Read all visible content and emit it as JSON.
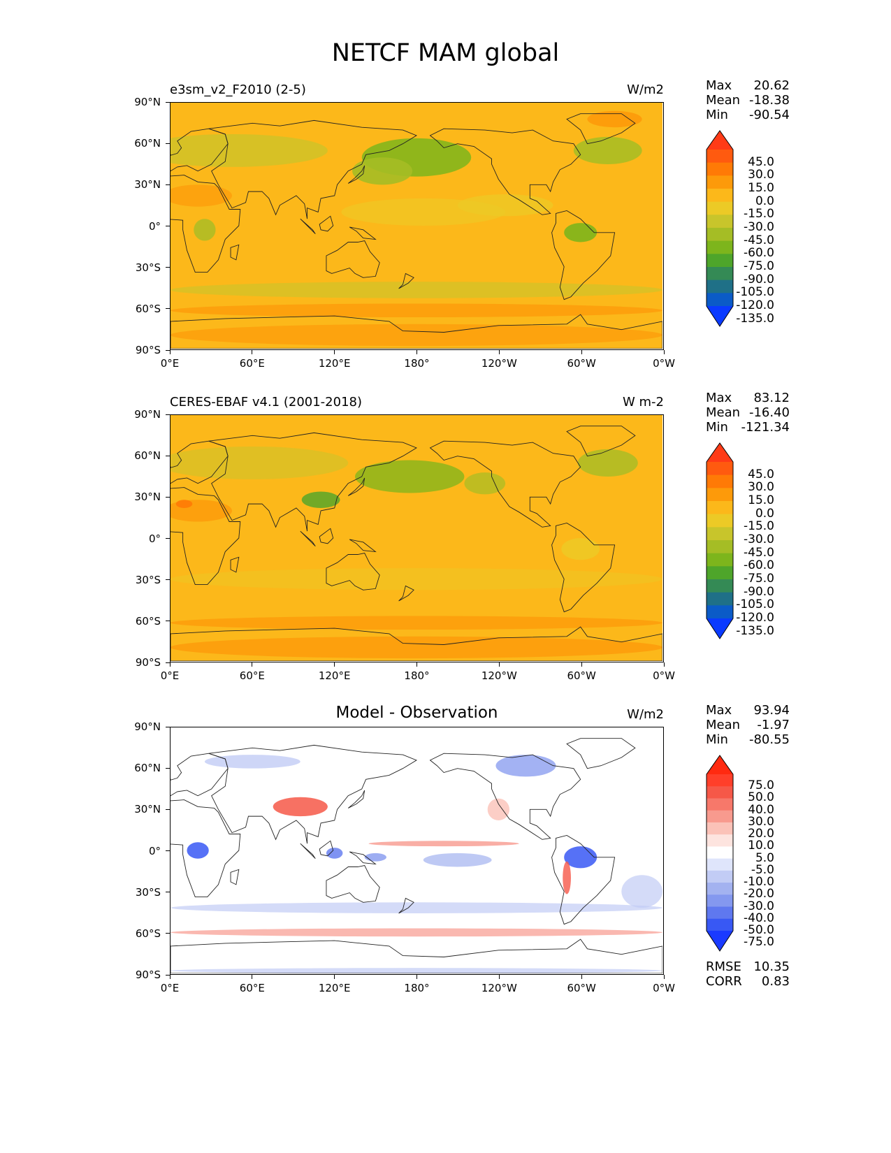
{
  "title": "NETCF MAM global",
  "x_ticks": [
    "0°E",
    "60°E",
    "120°E",
    "180°",
    "120°W",
    "60°W",
    "0°W"
  ],
  "y_ticks": [
    "90°N",
    "60°N",
    "30°N",
    "0°",
    "30°S",
    "60°S",
    "90°S"
  ],
  "panels": [
    {
      "name": "model",
      "left_title": "e3sm_v2_F2010 (2-5)",
      "center_title": "",
      "units": "W/m2",
      "stats": {
        "max_label": "Max",
        "max": "20.62",
        "mean_label": "Mean",
        "mean": "-18.38",
        "min_label": "Min",
        "min": "-90.54"
      },
      "colorbar": {
        "labels": [
          "45.0",
          "30.0",
          "15.0",
          "0.0",
          "-15.0",
          "-30.0",
          "-45.0",
          "-60.0",
          "-75.0",
          "-90.0",
          "-105.0",
          "-120.0",
          "-135.0"
        ],
        "colors": [
          "#ff3b17",
          "#ff5a0f",
          "#ff7a06",
          "#fd9a0a",
          "#fcb81a",
          "#ecca26",
          "#c8c52b",
          "#a5bd25",
          "#7db51c",
          "#4ea52a",
          "#348a55",
          "#1f7087",
          "#0b5bc7",
          "#0a3aff"
        ]
      },
      "palette": "fill",
      "base_color": "#fcb81a"
    },
    {
      "name": "observation",
      "left_title": "CERES-EBAF v4.1 (2001-2018)",
      "center_title": "",
      "units": "W m-2",
      "stats": {
        "max_label": "Max",
        "max": "83.12",
        "mean_label": "Mean",
        "mean": "-16.40",
        "min_label": "Min",
        "min": "-121.34"
      },
      "colorbar": {
        "labels": [
          "45.0",
          "30.0",
          "15.0",
          "0.0",
          "-15.0",
          "-30.0",
          "-45.0",
          "-60.0",
          "-75.0",
          "-90.0",
          "-105.0",
          "-120.0",
          "-135.0"
        ],
        "colors": [
          "#ff3b17",
          "#ff5a0f",
          "#ff7a06",
          "#fd9a0a",
          "#fcb81a",
          "#ecca26",
          "#c8c52b",
          "#a5bd25",
          "#7db51c",
          "#4ea52a",
          "#348a55",
          "#1f7087",
          "#0b5bc7",
          "#0a3aff"
        ]
      },
      "palette": "fill",
      "base_color": "#fcb81a"
    },
    {
      "name": "difference",
      "left_title": "",
      "center_title": "Model - Observation",
      "units": "W/m2",
      "stats": {
        "max_label": "Max",
        "max": "93.94",
        "mean_label": "Mean",
        "mean": "-1.97",
        "min_label": "Min",
        "min": "-80.55"
      },
      "extra_stats": {
        "rmse_label": "RMSE",
        "rmse": "10.35",
        "corr_label": "CORR",
        "corr": "0.83"
      },
      "colorbar": {
        "labels": [
          "75.0",
          "50.0",
          "40.0",
          "30.0",
          "20.0",
          "10.0",
          "5.0",
          "-5.0",
          "-10.0",
          "-20.0",
          "-30.0",
          "-40.0",
          "-50.0",
          "-75.0"
        ],
        "colors": [
          "#ff2a10",
          "#ff3f2a",
          "#f65848",
          "#f7786a",
          "#f89a8e",
          "#fbc2b8",
          "#fde4df",
          "#ffffff",
          "#dfe5fb",
          "#c2ccf5",
          "#a3b2f0",
          "#8498ef",
          "#5f78ef",
          "#3858f4",
          "#1a3aff"
        ]
      },
      "palette": "diff",
      "base_color": "#ffffff"
    }
  ]
}
